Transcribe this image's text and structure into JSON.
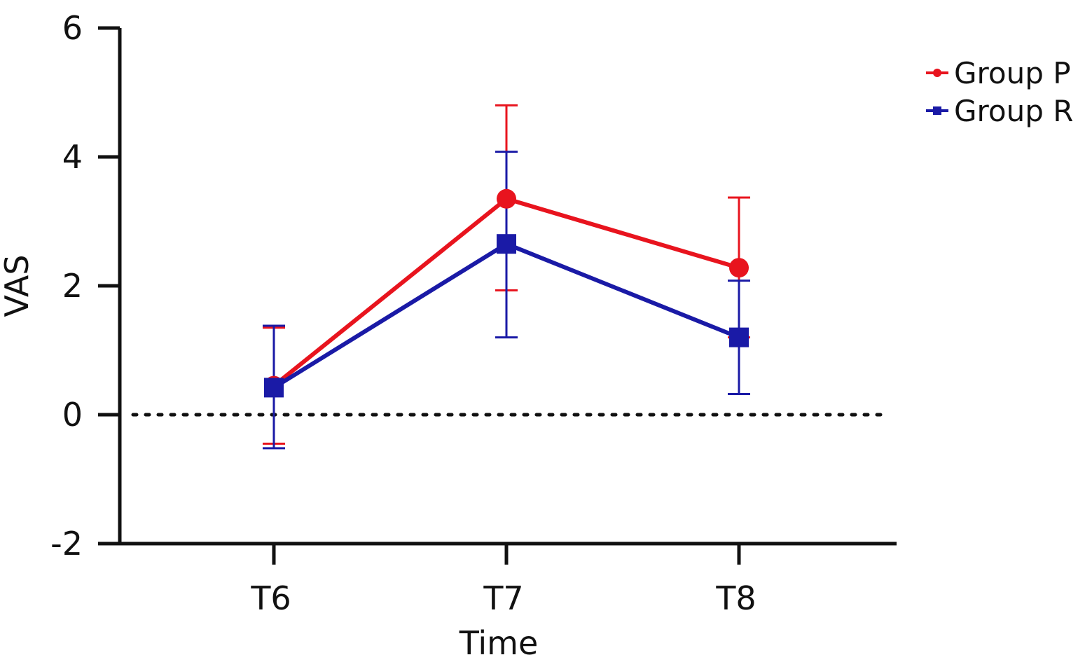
{
  "chart_data": {
    "type": "line",
    "title": "",
    "xlabel": "Time",
    "ylabel": "VAS",
    "categories": [
      "T6",
      "T7",
      "T8"
    ],
    "ylim": [
      -2,
      6
    ],
    "yticks": [
      "6",
      "4",
      "2",
      "0",
      "-2"
    ],
    "grid": false,
    "reference_line": {
      "y": 0,
      "style": "dotted"
    },
    "legend_position": "top-right",
    "series": [
      {
        "name": "Group P",
        "color": "#e8141e",
        "marker": "circle",
        "values": [
          0.45,
          3.35,
          2.28
        ],
        "err_low": [
          -0.45,
          1.93,
          1.2
        ],
        "err_high": [
          1.35,
          4.8,
          3.37
        ]
      },
      {
        "name": "Group R",
        "color": "#1a1aa6",
        "marker": "square",
        "values": [
          0.42,
          2.65,
          1.2
        ],
        "err_low": [
          -0.52,
          1.2,
          0.32
        ],
        "err_high": [
          1.38,
          4.08,
          2.08
        ]
      }
    ]
  }
}
